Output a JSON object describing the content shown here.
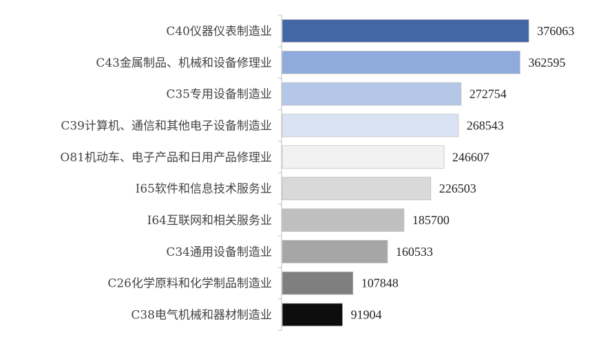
{
  "chart_data": {
    "type": "bar",
    "orientation": "horizontal",
    "title": "",
    "xlabel": "",
    "ylabel": "",
    "categories": [
      "C40仪器仪表制造业",
      "C43金属制品、机械和设备修理业",
      "C35专用设备制造业",
      "C39计算机、通信和其他电子设备制造业",
      "O81机动车、电子产品和日用产品修理业",
      "I65软件和信息技术服务业",
      "I64互联网和相关服务业",
      "C34通用设备制造业",
      "C26化学原料和化学制品制造业",
      "C38电气机械和器材制造业"
    ],
    "values": [
      376063,
      362595,
      272754,
      268543,
      246607,
      226503,
      185700,
      160533,
      107848,
      91904
    ],
    "value_labels": [
      "376063",
      "362595",
      "272754",
      "268543",
      "246607",
      "226503",
      "185700",
      "160533",
      "107848",
      "91904"
    ],
    "colors": [
      "#4366a7",
      "#8faadc",
      "#b4c7e7",
      "#dae3f3",
      "#f2f2f2",
      "#d9d9d9",
      "#bfbfbf",
      "#a6a6a6",
      "#7f7f7f",
      "#0d0d0d"
    ],
    "bar_border": "#c0c0c0",
    "xlim": [
      0,
      400000
    ],
    "grid": false,
    "legend": "none"
  }
}
